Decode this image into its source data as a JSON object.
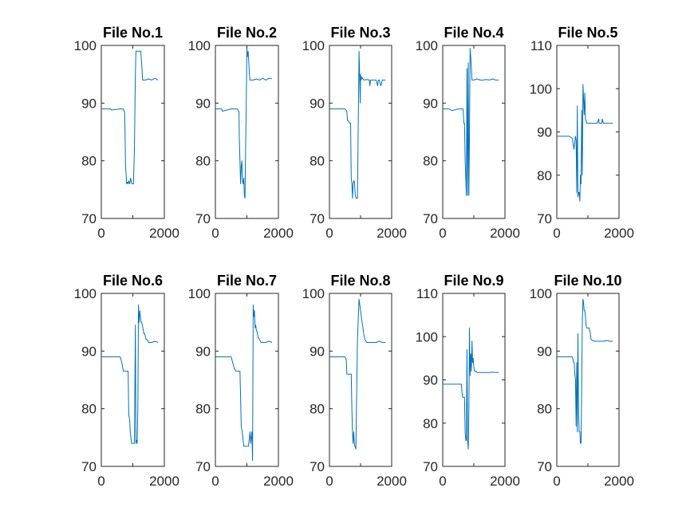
{
  "chart_data": [
    {
      "type": "line",
      "title": "File No.1",
      "xlim": [
        0,
        2000
      ],
      "ylim": [
        70,
        100
      ],
      "xticks": [
        0,
        2000
      ],
      "yticks": [
        70,
        80,
        90,
        100
      ],
      "grid": false,
      "color": "#0072bd",
      "x": [
        0,
        300,
        320,
        600,
        700,
        740,
        750,
        770,
        790,
        800,
        830,
        850,
        870,
        900,
        930,
        960,
        980,
        1000,
        1020,
        1050,
        1080,
        1100,
        1150,
        1200,
        1250,
        1290,
        1310,
        1320,
        1400,
        1500,
        1600,
        1700,
        1800
      ],
      "values": [
        89,
        89,
        88.8,
        89,
        89,
        88.4,
        86,
        79,
        77.5,
        76,
        76.3,
        76,
        76.5,
        76,
        77,
        76.2,
        76,
        76,
        76,
        82,
        95,
        99,
        99,
        99,
        99,
        96,
        94,
        94,
        94,
        94.2,
        94,
        94.3,
        94
      ]
    },
    {
      "type": "line",
      "title": "File No.2",
      "xlim": [
        0,
        2000
      ],
      "ylim": [
        70,
        100
      ],
      "xticks": [
        0,
        2000
      ],
      "yticks": [
        70,
        80,
        90,
        100
      ],
      "grid": false,
      "color": "#0072bd",
      "x": [
        0,
        200,
        220,
        500,
        700,
        750,
        760,
        780,
        800,
        820,
        840,
        860,
        880,
        900,
        920,
        940,
        950,
        980,
        1000,
        1010,
        1040,
        1060,
        1080,
        1100,
        1200,
        1300,
        1400,
        1500,
        1600,
        1700,
        1800
      ],
      "values": [
        89,
        89,
        88.6,
        89,
        89,
        88.5,
        84,
        80,
        76,
        79,
        80,
        76.5,
        76,
        77,
        74,
        73.5,
        78,
        90,
        99.5,
        98,
        99,
        97,
        95,
        94,
        94,
        94.2,
        94,
        94.3,
        94,
        94.3,
        94.3
      ]
    },
    {
      "type": "line",
      "title": "File No.3",
      "xlim": [
        0,
        2000
      ],
      "ylim": [
        70,
        100
      ],
      "xticks": [
        0,
        2000
      ],
      "yticks": [
        70,
        80,
        90,
        100
      ],
      "grid": false,
      "color": "#0072bd",
      "x": [
        0,
        300,
        500,
        560,
        580,
        600,
        650,
        680,
        700,
        720,
        740,
        760,
        780,
        800,
        830,
        860,
        900,
        920,
        950,
        970,
        990,
        1000,
        1020,
        1040,
        1100,
        1200,
        1280,
        1300,
        1320,
        1400,
        1500,
        1550,
        1570,
        1600,
        1650,
        1700,
        1800
      ],
      "values": [
        89,
        89,
        89,
        88.6,
        87,
        87,
        86.5,
        86.5,
        77,
        76,
        73.5,
        76,
        76.5,
        76.5,
        74,
        73.5,
        73.5,
        84,
        99,
        95,
        90,
        95,
        94,
        94.5,
        94,
        94.1,
        94,
        93,
        94,
        94,
        94,
        93,
        94,
        94,
        93,
        94,
        94
      ]
    },
    {
      "type": "line",
      "title": "File No.4",
      "xlim": [
        0,
        2000
      ],
      "ylim": [
        70,
        100
      ],
      "xticks": [
        0,
        2000
      ],
      "yticks": [
        70,
        80,
        90,
        100
      ],
      "grid": false,
      "color": "#0072bd",
      "x": [
        0,
        200,
        300,
        500,
        650,
        660,
        680,
        700,
        720,
        740,
        760,
        780,
        800,
        820,
        840,
        860,
        880,
        900,
        920,
        940,
        960,
        1000,
        1100,
        1200,
        1300,
        1400,
        1500,
        1600,
        1700,
        1800
      ],
      "values": [
        89,
        89,
        88.7,
        89,
        89,
        88.7,
        86.5,
        86.5,
        80,
        77,
        74,
        96,
        74,
        97,
        74,
        84,
        99.5,
        98,
        96,
        94,
        94,
        94,
        94.2,
        94,
        94,
        94.1,
        94,
        94.2,
        94,
        94
      ]
    },
    {
      "type": "line",
      "title": "File No.5",
      "xlim": [
        0,
        2000
      ],
      "ylim": [
        70,
        110
      ],
      "xticks": [
        0,
        2000
      ],
      "yticks": [
        70,
        80,
        90,
        100,
        110
      ],
      "grid": false,
      "color": "#0072bd",
      "x": [
        0,
        200,
        400,
        500,
        550,
        600,
        620,
        640,
        660,
        680,
        700,
        720,
        740,
        760,
        780,
        800,
        820,
        840,
        860,
        880,
        900,
        920,
        940,
        960,
        980,
        1000,
        1020,
        1040,
        1060,
        1080,
        1100,
        1200,
        1300,
        1350,
        1360,
        1400,
        1450,
        1460,
        1500,
        1600,
        1700,
        1800
      ],
      "values": [
        89,
        89,
        89,
        88.5,
        86,
        89,
        88,
        76,
        96,
        75,
        76,
        76,
        74,
        80,
        78,
        95,
        80,
        101,
        98,
        94,
        99,
        93,
        92.5,
        92,
        92,
        92,
        92,
        92,
        92,
        92,
        92,
        92,
        92,
        93,
        92,
        92,
        92,
        93,
        92,
        92,
        92,
        92
      ]
    },
    {
      "type": "line",
      "title": "File No.6",
      "xlim": [
        0,
        2000
      ],
      "ylim": [
        70,
        100
      ],
      "xticks": [
        0,
        2000
      ],
      "yticks": [
        70,
        80,
        90,
        100
      ],
      "grid": false,
      "color": "#0072bd",
      "x": [
        0,
        200,
        400,
        600,
        650,
        700,
        750,
        800,
        850,
        870,
        900,
        920,
        960,
        1000,
        1050,
        1080,
        1100,
        1120,
        1140,
        1160,
        1180,
        1200,
        1220,
        1240,
        1260,
        1280,
        1320,
        1350,
        1380,
        1420,
        1450,
        1500,
        1600,
        1700,
        1800
      ],
      "values": [
        89,
        89,
        89,
        89,
        88,
        86.5,
        86.5,
        86.5,
        86.5,
        79,
        78,
        76,
        74,
        74,
        74,
        94.5,
        74,
        74.5,
        74,
        80,
        98,
        95,
        97,
        96,
        95,
        95,
        94,
        93,
        93,
        92,
        92,
        91.5,
        91.5,
        91.7,
        91.5
      ]
    },
    {
      "type": "line",
      "title": "File No.7",
      "xlim": [
        0,
        2000
      ],
      "ylim": [
        70,
        100
      ],
      "xticks": [
        0,
        2000
      ],
      "yticks": [
        70,
        80,
        90,
        100
      ],
      "grid": false,
      "color": "#0072bd",
      "x": [
        0,
        200,
        400,
        500,
        550,
        600,
        650,
        700,
        780,
        800,
        820,
        850,
        900,
        950,
        1000,
        1050,
        1100,
        1120,
        1160,
        1180,
        1200,
        1220,
        1240,
        1260,
        1280,
        1300,
        1320,
        1350,
        1400,
        1450,
        1500,
        1600,
        1700,
        1800
      ],
      "values": [
        89,
        89,
        89,
        89,
        88,
        87,
        86.5,
        86.5,
        86.5,
        82,
        77,
        76,
        73.5,
        73.5,
        73.5,
        73.5,
        76,
        74,
        76,
        71,
        98,
        96,
        97,
        94,
        94.5,
        93.5,
        93.5,
        92.5,
        92,
        91.5,
        91.5,
        91.5,
        91.7,
        91.5
      ]
    },
    {
      "type": "line",
      "title": "File No.8",
      "xlim": [
        0,
        2000
      ],
      "ylim": [
        70,
        100
      ],
      "xticks": [
        0,
        2000
      ],
      "yticks": [
        70,
        80,
        90,
        100
      ],
      "grid": false,
      "color": "#0072bd",
      "x": [
        0,
        200,
        400,
        500,
        540,
        560,
        580,
        600,
        650,
        700,
        720,
        740,
        760,
        780,
        800,
        820,
        850,
        900,
        950,
        1000,
        1050,
        1080,
        1100,
        1120,
        1140,
        1200,
        1300,
        1400,
        1500,
        1600,
        1700,
        1800
      ],
      "values": [
        89,
        89,
        89,
        89,
        88.5,
        86,
        86,
        86,
        86,
        86,
        80,
        76,
        74,
        76,
        74,
        73.5,
        73,
        92,
        99,
        97,
        95,
        94,
        93,
        92.5,
        92,
        91.5,
        91.5,
        91.5,
        91.5,
        91.7,
        91.5,
        91.5
      ]
    },
    {
      "type": "line",
      "title": "File No.9",
      "xlim": [
        0,
        2000
      ],
      "ylim": [
        70,
        110
      ],
      "xticks": [
        0,
        2000
      ],
      "yticks": [
        70,
        80,
        90,
        100,
        110
      ],
      "grid": false,
      "color": "#0072bd",
      "x": [
        0,
        200,
        400,
        500,
        600,
        620,
        640,
        660,
        680,
        700,
        720,
        740,
        760,
        780,
        800,
        820,
        840,
        860,
        880,
        900,
        920,
        940,
        960,
        980,
        1000,
        1020,
        1040,
        1060,
        1080,
        1100,
        1200,
        1300,
        1400,
        1500,
        1600,
        1700,
        1800
      ],
      "values": [
        89,
        89,
        89,
        89,
        89,
        87,
        86,
        86,
        86,
        86,
        78,
        76,
        76,
        97,
        76,
        74,
        83,
        102,
        91,
        96,
        92,
        99,
        94,
        95,
        93,
        92,
        92,
        92,
        92,
        91.7,
        91.7,
        91.7,
        91.7,
        91.7,
        91.8,
        91.7,
        91.7
      ]
    },
    {
      "type": "line",
      "title": "File No.10",
      "xlim": [
        0,
        2000
      ],
      "ylim": [
        70,
        100
      ],
      "xticks": [
        0,
        2000
      ],
      "yticks": [
        70,
        80,
        90,
        100
      ],
      "grid": false,
      "color": "#0072bd",
      "x": [
        0,
        200,
        400,
        500,
        540,
        560,
        580,
        600,
        620,
        640,
        660,
        680,
        700,
        720,
        740,
        760,
        780,
        800,
        820,
        840,
        860,
        880,
        900,
        920,
        940,
        960,
        980,
        1000,
        1020,
        1040,
        1060,
        1080,
        1100,
        1200,
        1300,
        1400,
        1500,
        1600,
        1700,
        1800
      ],
      "values": [
        89,
        89,
        89,
        89,
        88,
        88,
        86,
        85,
        77,
        88,
        76,
        93,
        79,
        76,
        76,
        74,
        74,
        84,
        95,
        99,
        98.5,
        97,
        97,
        96,
        94.5,
        94,
        94,
        94,
        94,
        94,
        93.5,
        93,
        92,
        91.7,
        91.7,
        91.7,
        91.7,
        91.8,
        91.7,
        91.7
      ]
    }
  ]
}
